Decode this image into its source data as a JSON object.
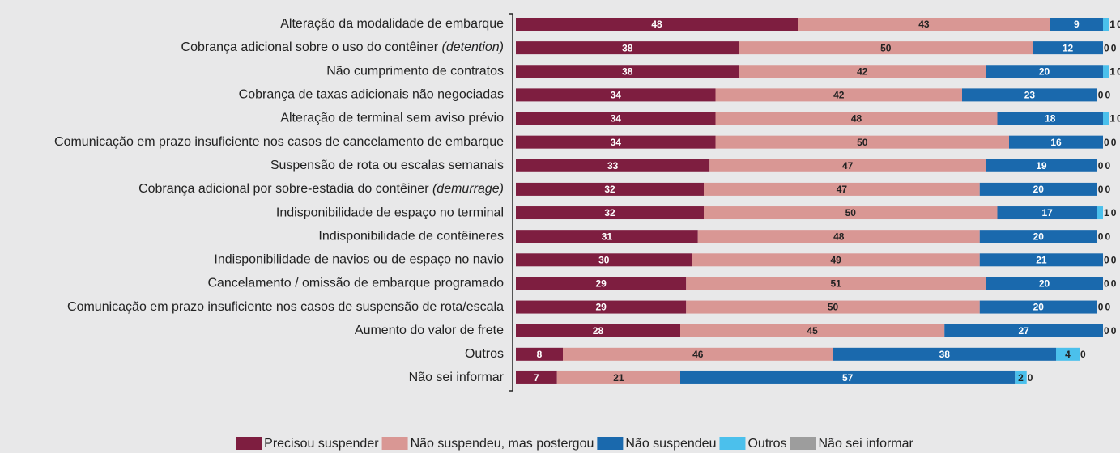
{
  "chart_data": {
    "type": "stacked_bar_horizontal",
    "categories": [
      "Alteração da modalidade de embarque",
      "Cobrança adicional sobre o uso do contêiner (detention)",
      "Não cumprimento de contratos",
      "Cobrança de taxas adicionais não negociadas",
      "Alteração de terminal sem aviso prévio",
      "Comunicação em prazo insuficiente nos casos de cancelamento de embarque",
      "Suspensão de rota ou escalas semanais",
      "Cobrança adicional por sobre-estadia do contêiner (demurrage)",
      "Indisponibilidade de espaço no terminal",
      "Indisponibilidade de contêineres",
      "Indisponibilidade de navios ou de espaço no navio",
      "Cancelamento / omissão de embarque programado",
      "Comunicação em prazo insuficiente nos casos de suspensão de rota/escala",
      "Aumento do valor de frete",
      "Outros",
      "Não sei informar"
    ],
    "series": [
      {
        "name": "Precisou suspender",
        "color": "#7e1e40",
        "values": [
          48,
          38,
          38,
          34,
          34,
          34,
          33,
          32,
          32,
          31,
          30,
          29,
          29,
          28,
          8,
          7
        ]
      },
      {
        "name": "Não suspendeu, mas postergou",
        "color": "#d99794",
        "values": [
          43,
          50,
          42,
          42,
          48,
          50,
          47,
          47,
          50,
          48,
          49,
          51,
          50,
          45,
          46,
          21
        ]
      },
      {
        "name": "Não suspendeu",
        "color": "#1a69ad",
        "values": [
          9,
          12,
          20,
          23,
          18,
          16,
          19,
          20,
          17,
          20,
          21,
          20,
          20,
          27,
          38,
          57
        ]
      },
      {
        "name": "Outros",
        "color": "#4bc0ec",
        "values": [
          1,
          0,
          1,
          0,
          1,
          0,
          0,
          0,
          1,
          0,
          0,
          0,
          0,
          0,
          4,
          2
        ]
      },
      {
        "name": "Não sei informar",
        "color": "#9d9d9d",
        "values": [
          0,
          0,
          0,
          0,
          0,
          0,
          0,
          0,
          0,
          0,
          0,
          0,
          0,
          0,
          0,
          0
        ]
      }
    ]
  }
}
